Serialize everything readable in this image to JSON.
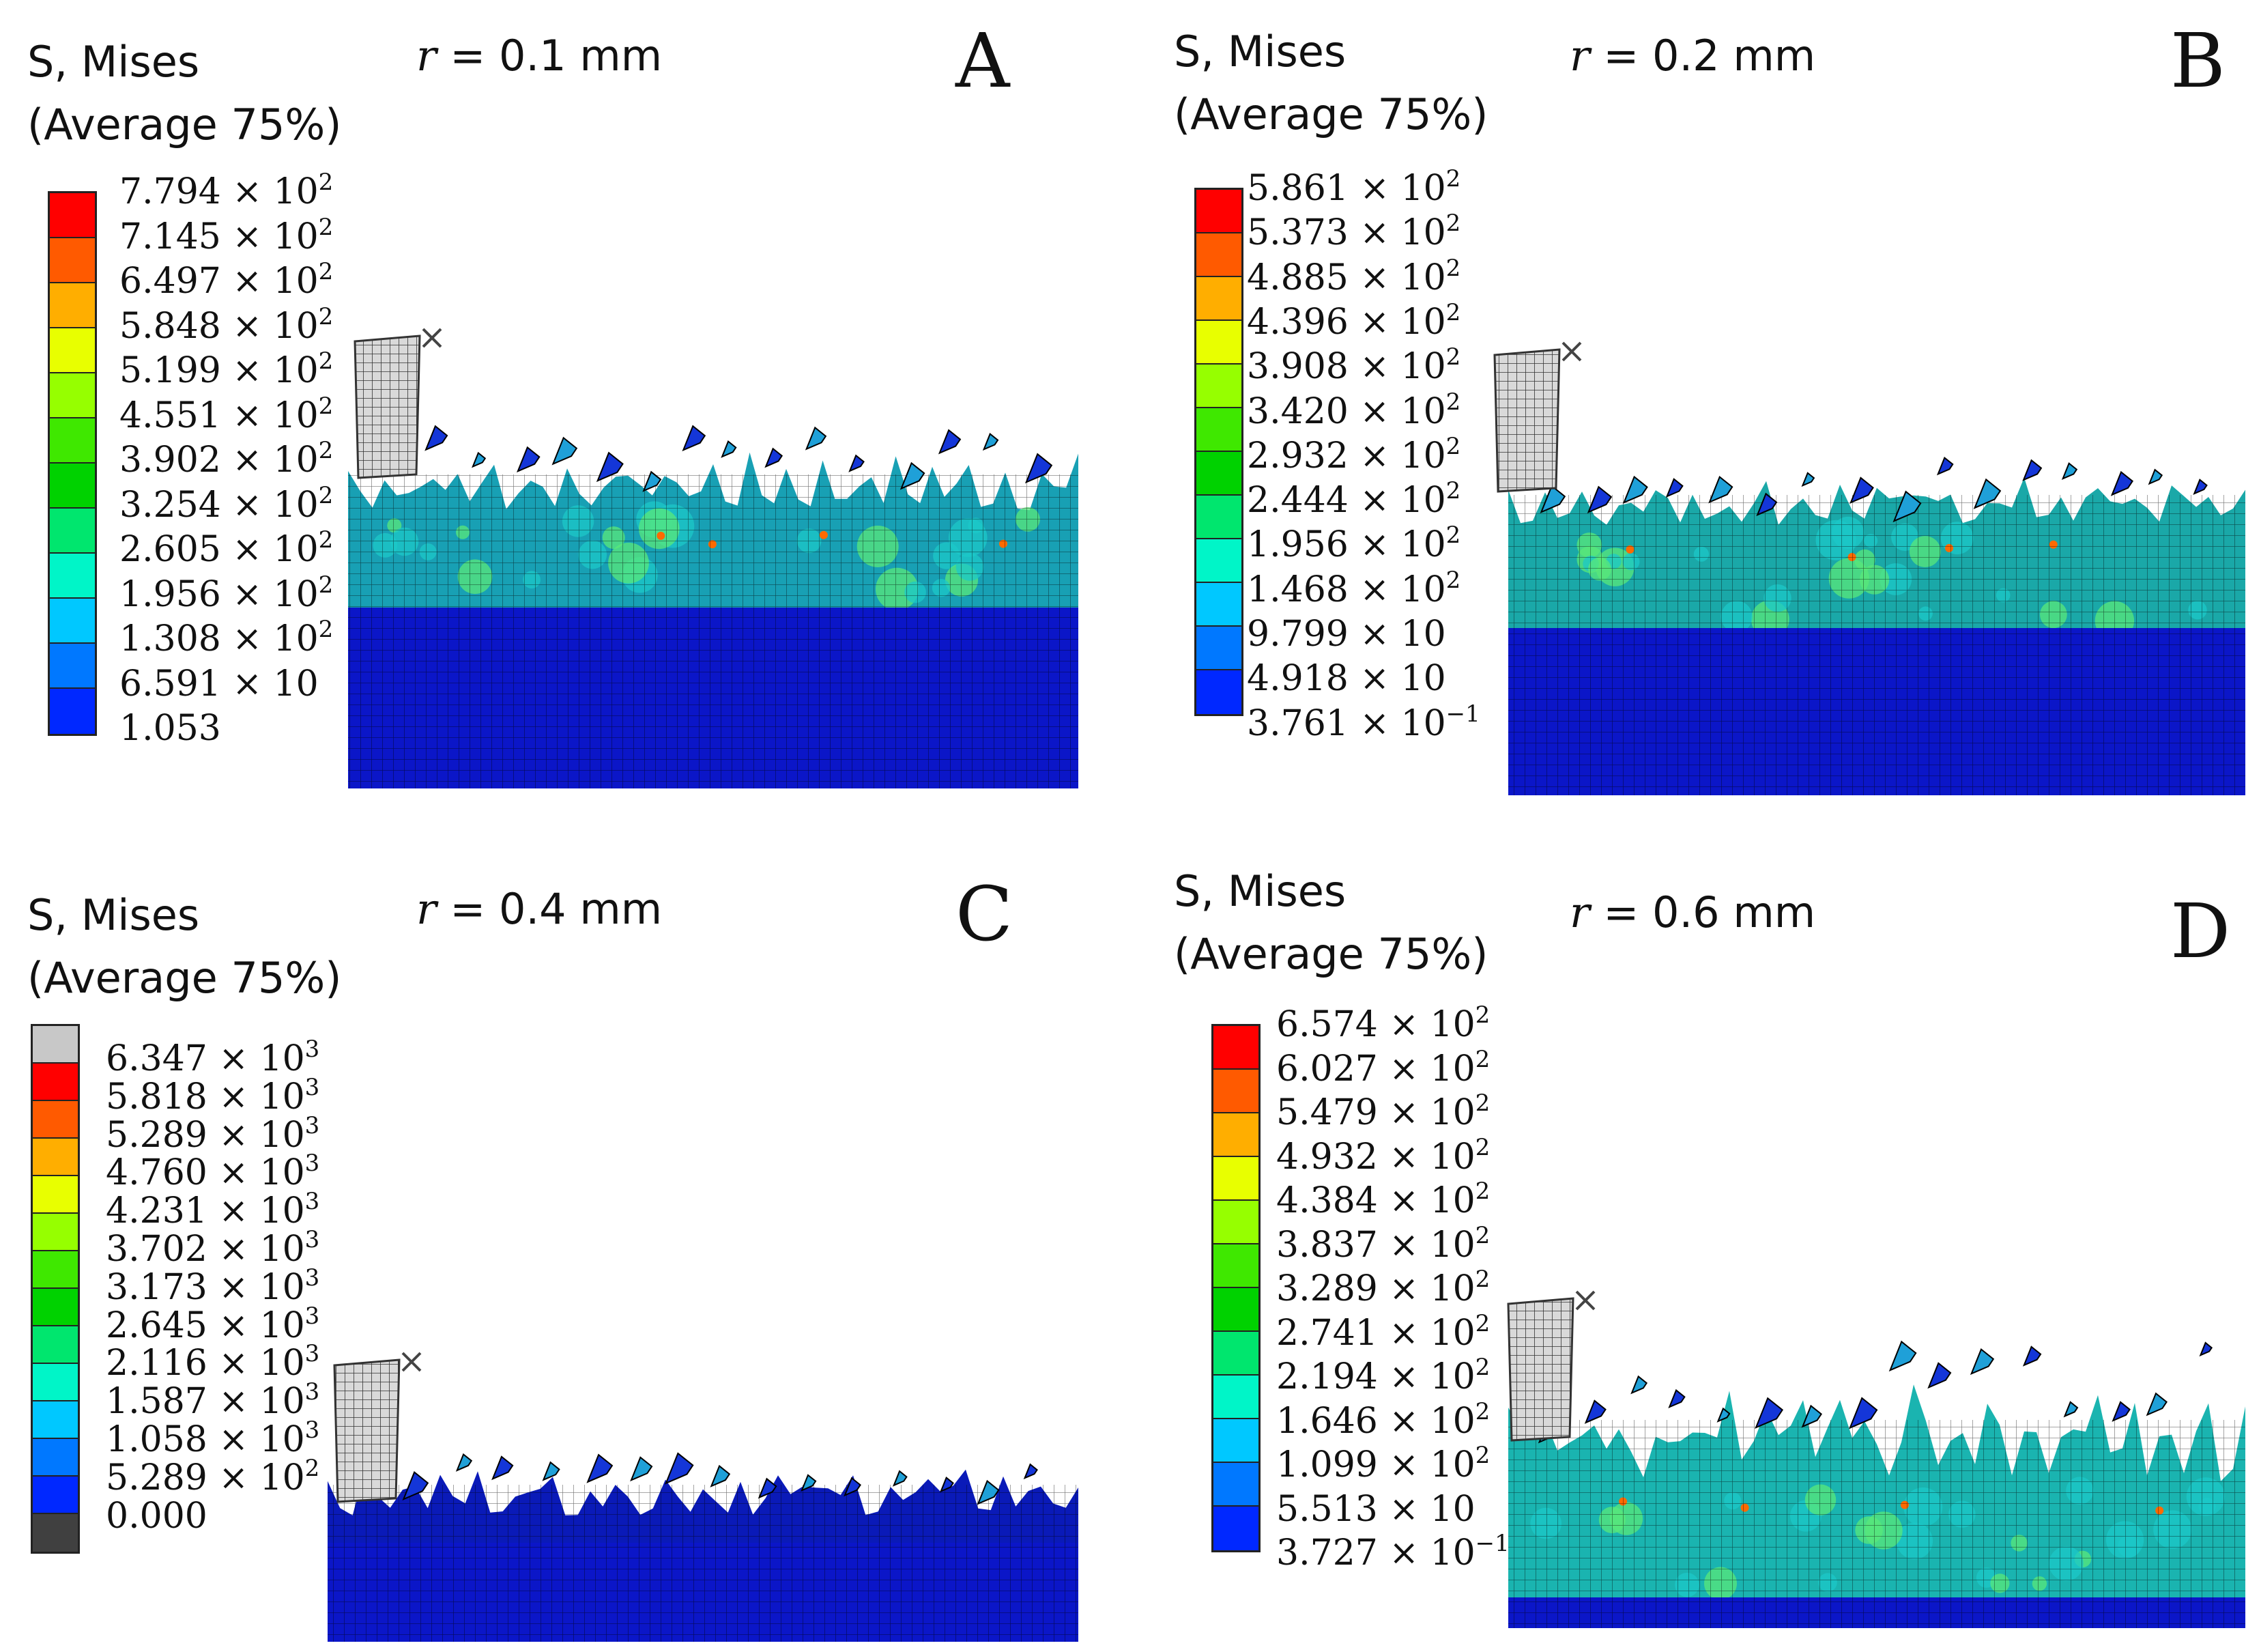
{
  "panels": [
    {
      "letter": "A",
      "legend_title_1": "S, Mises",
      "legend_title_2": "(Average 75%)",
      "radius_var": "r",
      "radius_text": " = 0.1 mm",
      "colors": [
        "#ff0000",
        "#ff5a00",
        "#ffae00",
        "#e8ff00",
        "#96ff00",
        "#3fe800",
        "#00d200",
        "#00e66e",
        "#00f5c8",
        "#00c8ff",
        "#0078ff",
        "#0028ff"
      ],
      "ticks": [
        {
          "mant": "7.794 × 10",
          "exp": "2"
        },
        {
          "mant": "7.145 × 10",
          "exp": "2"
        },
        {
          "mant": "6.497 × 10",
          "exp": "2"
        },
        {
          "mant": "5.848 × 10",
          "exp": "2"
        },
        {
          "mant": "5.199 × 10",
          "exp": "2"
        },
        {
          "mant": "4.551 × 10",
          "exp": "2"
        },
        {
          "mant": "3.902 × 10",
          "exp": "2"
        },
        {
          "mant": "3.254 × 10",
          "exp": "2"
        },
        {
          "mant": "2.605 × 10",
          "exp": "2"
        },
        {
          "mant": "1.956 × 10",
          "exp": "2"
        },
        {
          "mant": "1.308 × 10",
          "exp": "2"
        },
        {
          "mant": "6.591 × 10",
          "exp": ""
        },
        {
          "mant": "1.053",
          "exp": ""
        }
      ]
    },
    {
      "letter": "B",
      "legend_title_1": "S, Mises",
      "legend_title_2": "(Average 75%)",
      "radius_var": "r",
      "radius_text": " = 0.2 mm",
      "colors": [
        "#ff0000",
        "#ff5a00",
        "#ffae00",
        "#e8ff00",
        "#96ff00",
        "#3fe800",
        "#00d200",
        "#00e66e",
        "#00f5c8",
        "#00c8ff",
        "#0078ff",
        "#0028ff"
      ],
      "ticks": [
        {
          "mant": "5.861 × 10",
          "exp": "2"
        },
        {
          "mant": "5.373 × 10",
          "exp": "2"
        },
        {
          "mant": "4.885 × 10",
          "exp": "2"
        },
        {
          "mant": "4.396 × 10",
          "exp": "2"
        },
        {
          "mant": "3.908 × 10",
          "exp": "2"
        },
        {
          "mant": "3.420 × 10",
          "exp": "2"
        },
        {
          "mant": "2.932 × 10",
          "exp": "2"
        },
        {
          "mant": "2.444 × 10",
          "exp": "2"
        },
        {
          "mant": "1.956 × 10",
          "exp": "2"
        },
        {
          "mant": "1.468 × 10",
          "exp": "2"
        },
        {
          "mant": "9.799 × 10",
          "exp": ""
        },
        {
          "mant": "4.918 × 10",
          "exp": ""
        },
        {
          "mant": "3.761 × 10",
          "exp": "−1"
        }
      ]
    },
    {
      "letter": "C",
      "legend_title_1": "S, Mises",
      "legend_title_2": "(Average 75%)",
      "radius_var": "r",
      "radius_text": " = 0.4 mm",
      "colors": [
        "#c8c8c8",
        "#ff0000",
        "#ff5a00",
        "#ffae00",
        "#e8ff00",
        "#96ff00",
        "#3fe800",
        "#00d200",
        "#00e66e",
        "#00f5c8",
        "#00c8ff",
        "#0078ff",
        "#0028ff",
        "#404040"
      ],
      "ticks": [
        {
          "mant": "6.347 × 10",
          "exp": "3"
        },
        {
          "mant": "5.818 × 10",
          "exp": "3"
        },
        {
          "mant": "5.289 × 10",
          "exp": "3"
        },
        {
          "mant": "4.760 × 10",
          "exp": "3"
        },
        {
          "mant": "4.231 × 10",
          "exp": "3"
        },
        {
          "mant": "3.702 × 10",
          "exp": "3"
        },
        {
          "mant": "3.173 × 10",
          "exp": "3"
        },
        {
          "mant": "2.645 × 10",
          "exp": "3"
        },
        {
          "mant": "2.116 × 10",
          "exp": "3"
        },
        {
          "mant": "1.587 × 10",
          "exp": "3"
        },
        {
          "mant": "1.058 × 10",
          "exp": "3"
        },
        {
          "mant": "5.289 × 10",
          "exp": "2"
        },
        {
          "mant": "0.000",
          "exp": ""
        }
      ]
    },
    {
      "letter": "D",
      "legend_title_1": "S, Mises",
      "legend_title_2": "(Average 75%)",
      "radius_var": "r",
      "radius_text": " = 0.6 mm",
      "colors": [
        "#ff0000",
        "#ff5a00",
        "#ffae00",
        "#e8ff00",
        "#96ff00",
        "#3fe800",
        "#00d200",
        "#00e66e",
        "#00f5c8",
        "#00c8ff",
        "#0078ff",
        "#0028ff"
      ],
      "ticks": [
        {
          "mant": "6.574 × 10",
          "exp": "2"
        },
        {
          "mant": "6.027 × 10",
          "exp": "2"
        },
        {
          "mant": "5.479 × 10",
          "exp": "2"
        },
        {
          "mant": "4.932 × 10",
          "exp": "2"
        },
        {
          "mant": "4.384 × 10",
          "exp": "2"
        },
        {
          "mant": "3.837 × 10",
          "exp": "2"
        },
        {
          "mant": "3.289 × 10",
          "exp": "2"
        },
        {
          "mant": "2.741 × 10",
          "exp": "2"
        },
        {
          "mant": "2.194 × 10",
          "exp": "2"
        },
        {
          "mant": "1.646 × 10",
          "exp": "2"
        },
        {
          "mant": "1.099 × 10",
          "exp": "2"
        },
        {
          "mant": "5.513 × 10",
          "exp": ""
        },
        {
          "mant": "3.727 × 10",
          "exp": "−1"
        }
      ]
    }
  ]
}
